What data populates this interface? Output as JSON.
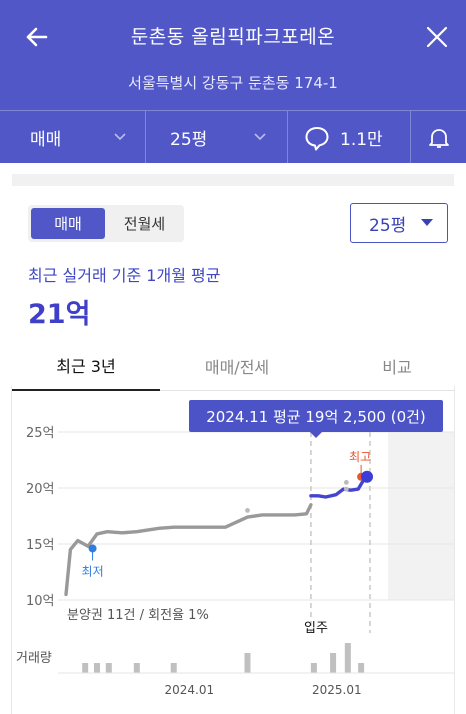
{
  "header": {
    "title": "둔촌동 올림픽파크포레온",
    "address": "서울특별시 강동구 둔촌동 174-1",
    "trade_type": "매매",
    "area": "25평",
    "comments": "1.1만",
    "back_icon": "arrow-left-icon",
    "close_icon": "close-icon",
    "comment_icon": "speech-bubble-icon",
    "bell_icon": "bell-icon"
  },
  "controls": {
    "segment": [
      "매매",
      "전월세"
    ],
    "size_select": "25평"
  },
  "summary": {
    "label": "최근 실거래 기준 1개월 평균",
    "value": "21억"
  },
  "tabs": [
    "최근 3년",
    "매매/전세",
    "비교"
  ],
  "tooltip": "2024.11 평균 19억 2,500 (0건)",
  "colors": {
    "brand": "#5157c7",
    "accent_line": "#4444d0",
    "history_line": "#999999",
    "low_marker": "#2e7de0",
    "high_marker": "#e8552f"
  },
  "chart_data": {
    "type": "line",
    "y_unit": "억",
    "yticks": [
      "25억",
      "20억",
      "15억",
      "10억"
    ],
    "ylim": [
      10,
      25
    ],
    "xticks": [
      {
        "label": "2024.01",
        "x": 2024.0
      },
      {
        "label": "2025.01",
        "x": 2025.0
      }
    ],
    "xlim": [
      2023.17,
      2025.42
    ],
    "series": [
      {
        "x": [
          2023.17,
          2023.2,
          2023.25,
          2023.32,
          2023.38,
          2023.45,
          2023.55,
          2023.65,
          2023.8,
          2023.9,
          2024.0,
          2024.12,
          2024.25,
          2024.4,
          2024.5,
          2024.55,
          2024.62,
          2024.72,
          2024.8,
          2024.83
        ],
        "values": [
          10.5,
          14.5,
          15.3,
          14.8,
          15.9,
          16.1,
          16.0,
          16.1,
          16.4,
          16.5,
          16.5,
          16.5,
          16.5,
          17.4,
          17.6,
          17.6,
          17.6,
          17.6,
          17.7,
          18.5
        ],
        "color": "#999999"
      },
      {
        "x": [
          2024.83,
          2024.88,
          2024.93,
          2025.0,
          2025.05,
          2025.1,
          2025.15,
          2025.2
        ],
        "values": [
          19.3,
          19.3,
          19.2,
          19.4,
          19.9,
          19.8,
          19.9,
          21.0
        ],
        "color": "#4444d0"
      }
    ],
    "markers": [
      {
        "label": "최저",
        "x": 2023.35,
        "value": 14.6
      },
      {
        "label": "최고",
        "x": 2025.17,
        "value": 21.0
      }
    ],
    "current": {
      "x": 2025.21,
      "value": 21.0
    },
    "dots": [
      {
        "x": 2024.4,
        "value": 18.0
      },
      {
        "x": 2025.07,
        "value": 20.5
      },
      {
        "x": 2025.07,
        "value": 19.9
      }
    ],
    "annotations": [
      "분양권 11건 / 회전율 1%",
      "입주"
    ],
    "volume_label": "거래량",
    "volume_x": [
      2023.3,
      2023.38,
      2023.46,
      2023.65,
      2023.9,
      2024.4,
      2024.85,
      2024.98,
      2025.08,
      2025.17
    ],
    "volume_values": [
      1,
      1,
      1,
      1,
      1,
      2,
      1,
      2,
      3,
      1
    ]
  }
}
